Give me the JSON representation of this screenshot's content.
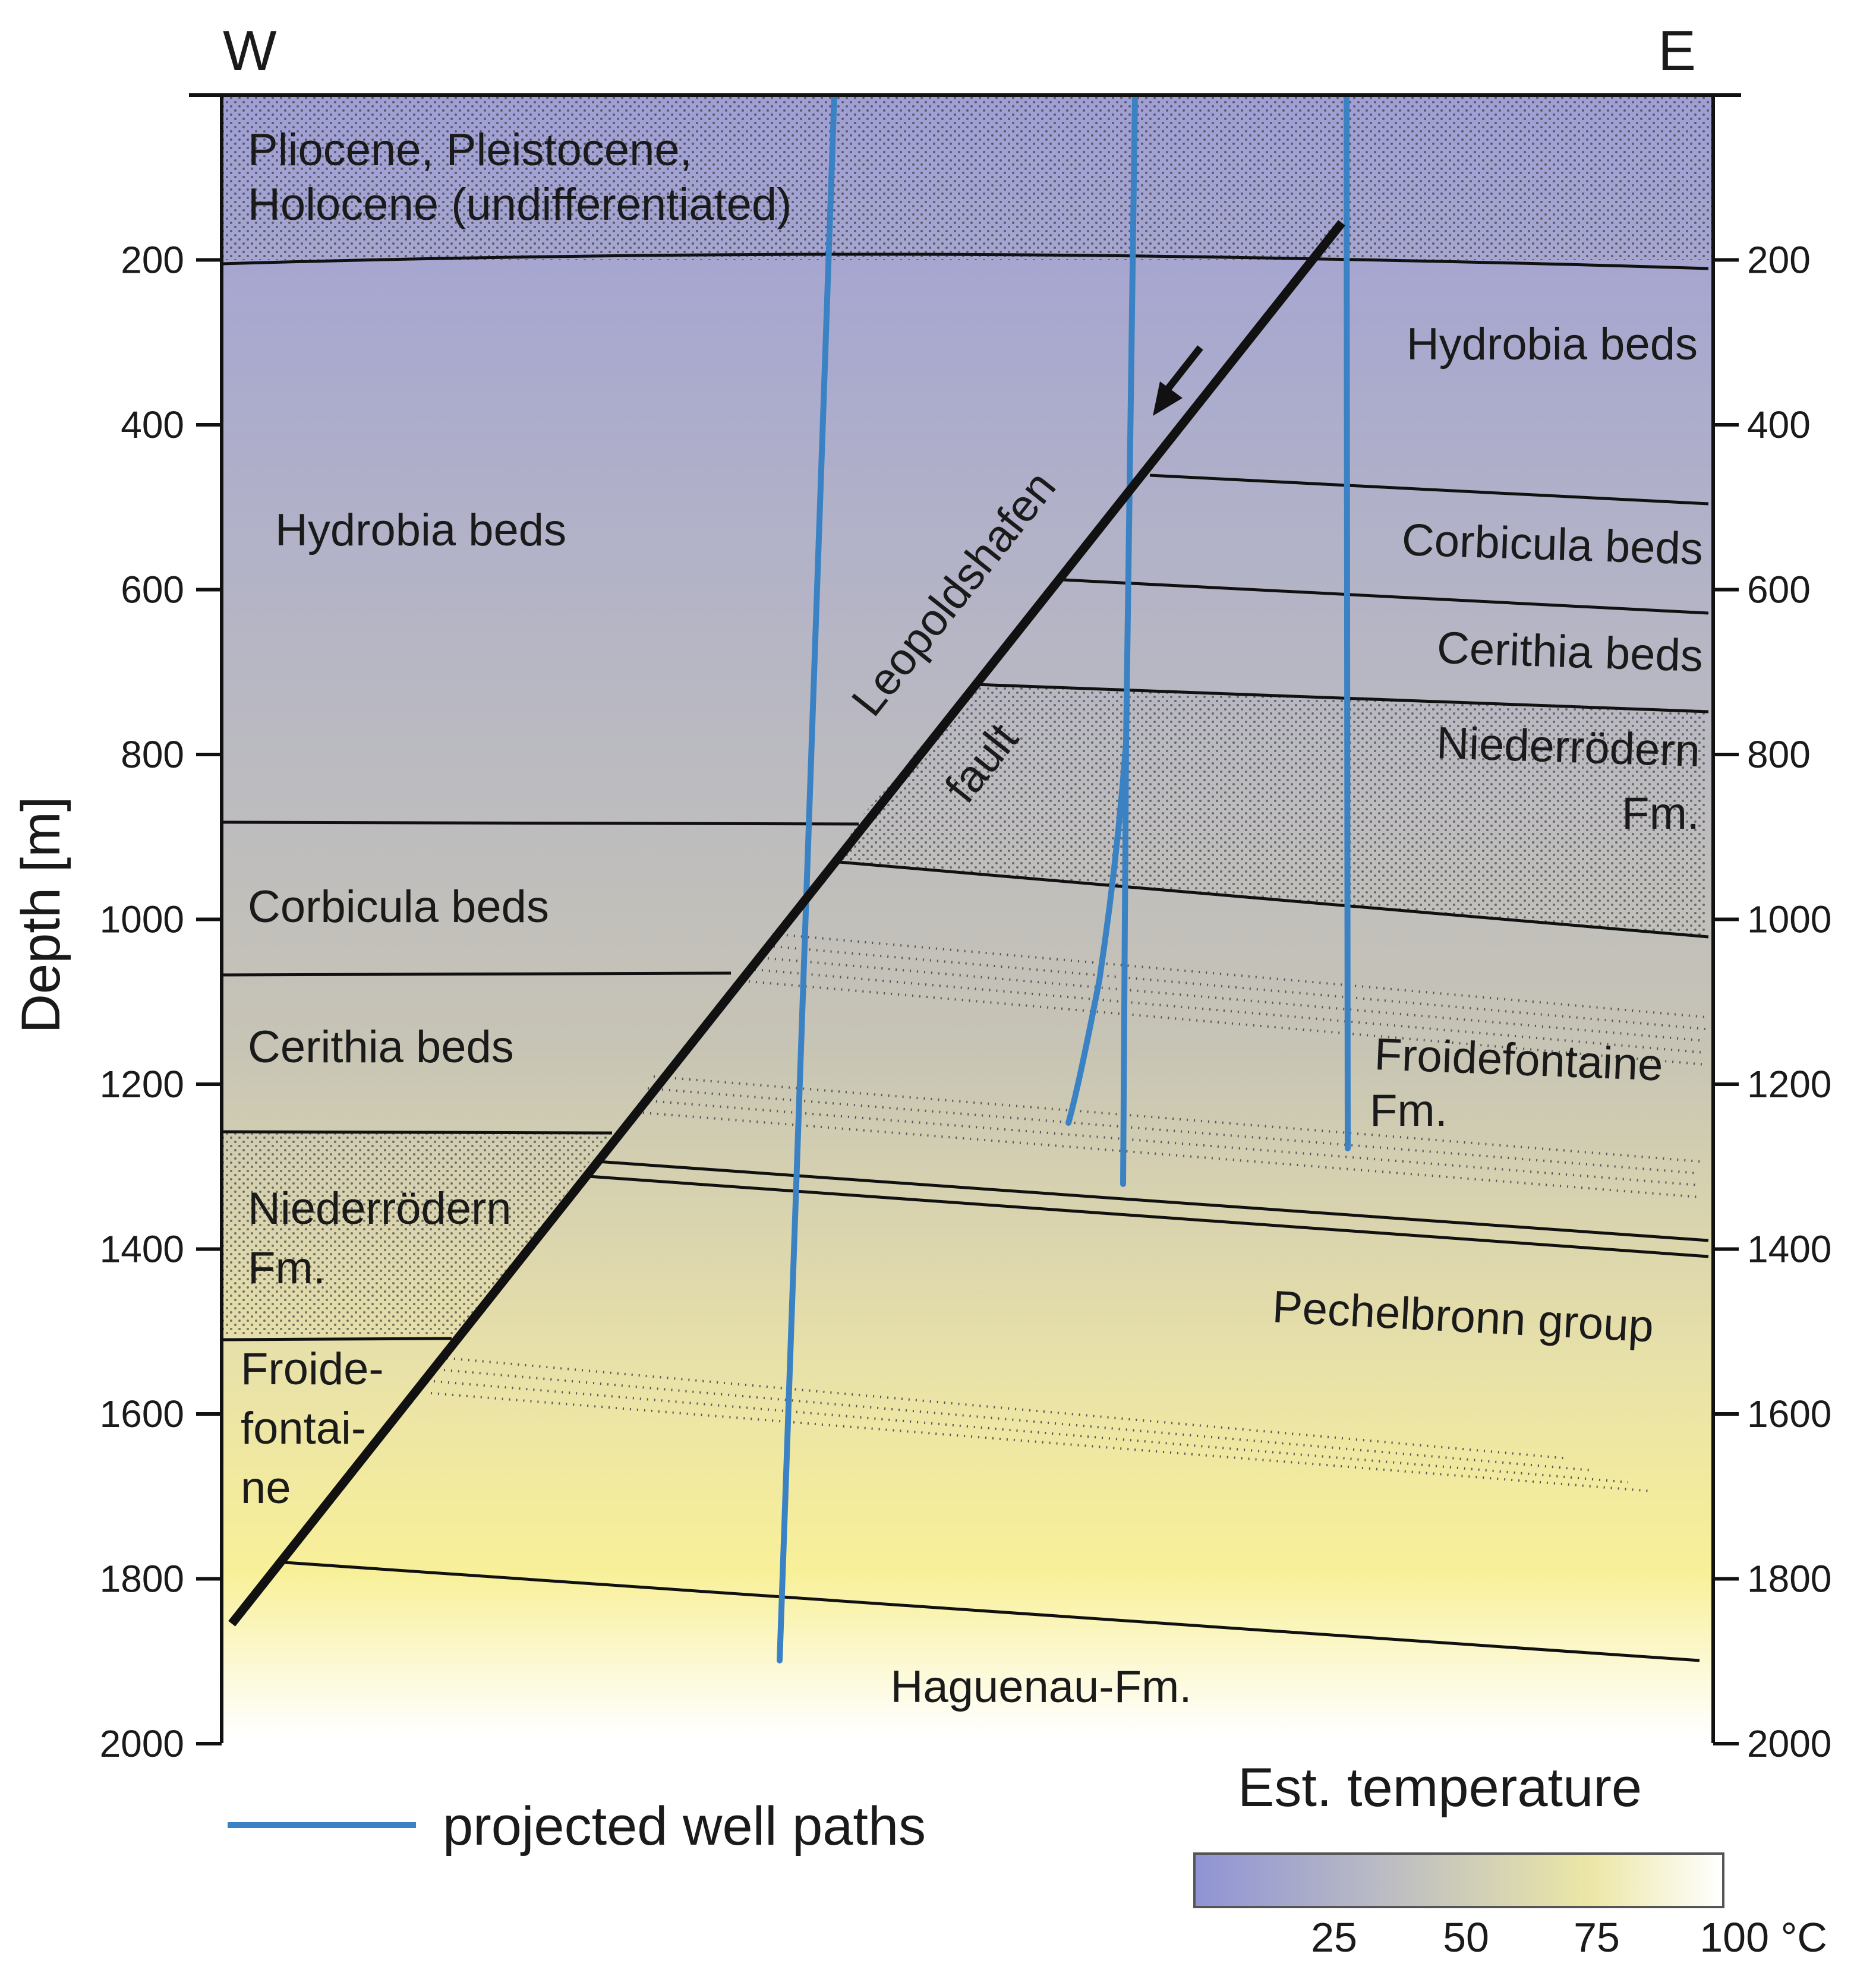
{
  "figure": {
    "west_label": "W",
    "east_label": "E",
    "y_axis_label": "Depth [m]",
    "depth_ticks": [
      "200",
      "400",
      "600",
      "800",
      "1000",
      "1200",
      "1400",
      "1600",
      "1800",
      "2000"
    ],
    "fault": {
      "name_line1": "Leopoldshafen",
      "name_line2": "fault"
    },
    "units": {
      "quaternary_line1": "Pliocene, Pleistocene,",
      "quaternary_line2": "Holocene (undifferentiated)",
      "hydrobia_w": "Hydrobia beds",
      "corbicula_w": "Corbicula beds",
      "cerithia_w": "Cerithia beds",
      "niederrodern_w_line1": "Niederrödern",
      "niederrodern_w_line2": "Fm.",
      "froide_w_line1": "Froide-",
      "froide_w_line2": "fontai-",
      "froide_w_line3": "ne",
      "hydrobia_e": "Hydrobia beds",
      "corbicula_e": "Corbicula beds",
      "cerithia_e": "Cerithia beds",
      "niederrodern_e_line1": "Niederrödern",
      "niederrodern_e_line2": "Fm.",
      "froide_e_line1": "Froidefontaine",
      "froide_e_line2": "Fm.",
      "pechelbronn": "Pechelbronn group",
      "haguenau": "Haguenau-Fm."
    },
    "legend": {
      "well_paths": "projected well paths",
      "well_color": "#3a82c4"
    },
    "colorbar": {
      "title": "Est. temperature",
      "ticks": [
        "25",
        "50",
        "75",
        "100 °C"
      ],
      "colors": [
        "#8f93d4",
        "#babbc4",
        "#ece7a6",
        "#ffffff"
      ]
    },
    "depth_gradient_colors": [
      "#9f9fd6",
      "#b7b7c4",
      "#c7c4b5",
      "#e9e2a8",
      "#f8f098",
      "#ffffff"
    ]
  }
}
